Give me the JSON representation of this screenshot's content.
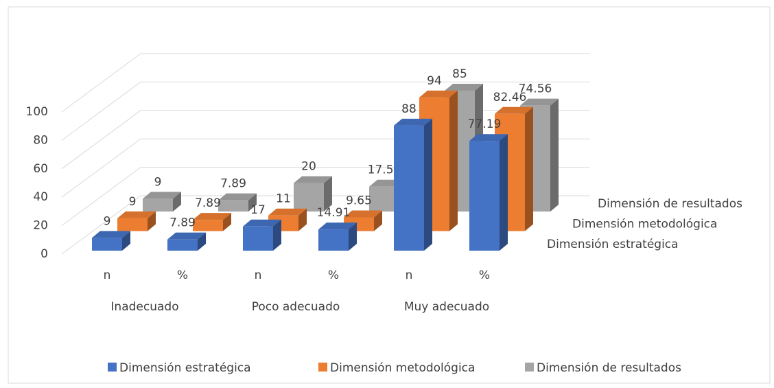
{
  "chart_data": {
    "type": "bar3d",
    "categories": [
      "n",
      "%",
      "n",
      "%",
      "n",
      "%"
    ],
    "groups": [
      "Inadecuado",
      "Poco adecuado",
      "Muy adecuado"
    ],
    "series": [
      {
        "name": "Dimensión estratégica",
        "color": "#4472c4",
        "values": [
          9,
          7.89,
          17,
          14.91,
          88,
          77.19
        ]
      },
      {
        "name": "Dimensión metodológica",
        "color": "#ed7d31",
        "values": [
          9,
          7.89,
          11,
          9.65,
          94,
          82.46
        ]
      },
      {
        "name": "Dimensión de resultados",
        "color": "#a5a5a5",
        "values": [
          9,
          7.89,
          20,
          17.54,
          85,
          74.56
        ]
      }
    ],
    "ylim": [
      0,
      100
    ],
    "yticks": [
      0,
      20,
      40,
      60,
      80,
      100
    ],
    "grid": true
  }
}
